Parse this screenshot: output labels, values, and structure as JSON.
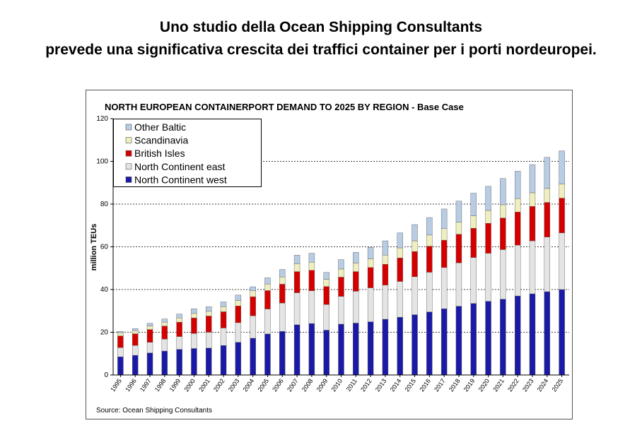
{
  "headline": {
    "line1": "Uno studio della Ocean Shipping Consultants",
    "line2": "prevede una significativa crescita dei traffici container per i porti nordeuropei."
  },
  "chart_data": {
    "type": "bar",
    "stacked": true,
    "title": "NORTH EUROPEAN CONTAINERPORT DEMAND  TO 2025 BY REGION - Base Case",
    "ylabel": "million TEUs",
    "xlabel": "",
    "ylim": [
      0,
      120
    ],
    "yticks": [
      0,
      20,
      40,
      60,
      80,
      100,
      120
    ],
    "grid": "dashed horizontal at 40, 60, 80, 100",
    "legend_position": "top-left",
    "source": "Source: Ocean Shipping Consultants",
    "categories": [
      "1995",
      "1996",
      "1997",
      "1998",
      "1999",
      "2000",
      "2001",
      "2002",
      "2003",
      "2004",
      "2005",
      "2006",
      "2007",
      "2008",
      "2009",
      "2010",
      "2011",
      "2012",
      "2013",
      "2014",
      "2015",
      "2016",
      "2017",
      "2018",
      "2019",
      "2020",
      "2021",
      "2022",
      "2023",
      "2024",
      "2025"
    ],
    "series": [
      {
        "name": "North Continent west",
        "color": "#1a1aa6",
        "values": [
          8.5,
          9.2,
          10.3,
          11.2,
          12,
          12.4,
          12.6,
          13.8,
          15.3,
          17.2,
          19.2,
          20.4,
          23.5,
          24.1,
          21,
          23.8,
          24.3,
          24.9,
          26.1,
          27,
          28.2,
          29.5,
          31,
          32.2,
          33.5,
          34.5,
          35.5,
          37,
          38,
          39,
          40
        ]
      },
      {
        "name": "North Continent east",
        "color": "#e4e4e4",
        "values": [
          4.3,
          4.6,
          5,
          5.6,
          6,
          7,
          7.4,
          8.2,
          9.2,
          10.5,
          11.7,
          13.3,
          15,
          15.3,
          12,
          13,
          14.9,
          15.9,
          16,
          16.8,
          17.8,
          18.6,
          19.3,
          20.3,
          21.5,
          22.5,
          23.2,
          23.8,
          24.8,
          25.6,
          26.5
        ]
      },
      {
        "name": "British Isles",
        "color": "#d40000",
        "values": [
          5.5,
          5.5,
          6,
          6.1,
          6.7,
          7.3,
          7.6,
          7.6,
          7.8,
          8.9,
          8.6,
          8.8,
          9.9,
          9.6,
          8.4,
          9,
          9.2,
          9.5,
          9.7,
          11,
          11.8,
          12.2,
          12.8,
          13.4,
          13.7,
          14,
          14.8,
          15.5,
          16.1,
          16.2,
          16.3
        ]
      },
      {
        "name": "Scandinavia",
        "color": "#eeeebe",
        "values": [
          1.5,
          1.5,
          1.7,
          1.8,
          2,
          2.1,
          2.2,
          2.4,
          2.6,
          2.8,
          3.1,
          3.4,
          3.7,
          3.8,
          3.4,
          3.8,
          4,
          4.1,
          4.3,
          4.7,
          5,
          5.2,
          5.4,
          5.6,
          5.8,
          6,
          6.2,
          6.3,
          6.4,
          6.5,
          6.6
        ]
      },
      {
        "name": "Other Baltic",
        "color": "#b8cce4",
        "values": [
          0.6,
          0.9,
          1.2,
          1.5,
          1.8,
          2.2,
          2.2,
          2.2,
          2.5,
          1.9,
          2.9,
          3.5,
          4,
          4.2,
          3.2,
          4.4,
          5,
          5.3,
          6.7,
          7,
          7.6,
          8.2,
          9.2,
          9.9,
          10.6,
          11.3,
          12.3,
          12.8,
          13.2,
          14.6,
          15.5
        ]
      }
    ]
  }
}
